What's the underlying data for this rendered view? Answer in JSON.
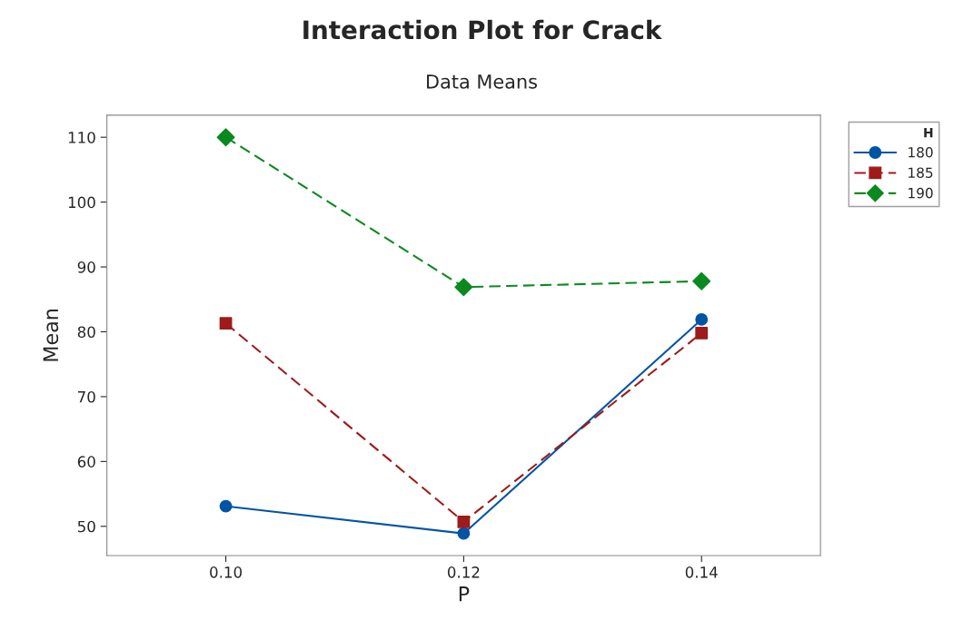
{
  "chart_data": {
    "type": "line",
    "title": "Interaction Plot for Crack",
    "subtitle": "Data Means",
    "xlabel": "P",
    "ylabel": "Mean",
    "legend_title": "H",
    "x": [
      0.1,
      0.12,
      0.14
    ],
    "series": [
      {
        "name": "180",
        "color": "#0054a6",
        "values": [
          53.1,
          48.9,
          81.9
        ],
        "marker": "circle",
        "line_style": "solid"
      },
      {
        "name": "185",
        "color": "#9e1b1b",
        "values": [
          81.3,
          50.7,
          79.8
        ],
        "marker": "square",
        "line_style": "dashed"
      },
      {
        "name": "190",
        "color": "#0a8a1e",
        "values": [
          110,
          86.9,
          87.8
        ],
        "marker": "diamond",
        "line_style": "dashed"
      }
    ],
    "xlim": [
      0.09,
      0.15
    ],
    "xticks": [
      {
        "value": 0.1,
        "label": "0.10"
      },
      {
        "value": 0.12,
        "label": "0.12"
      },
      {
        "value": 0.14,
        "label": "0.14"
      }
    ],
    "ylim": [
      45.5,
      113.4
    ],
    "yticks": [
      50,
      60,
      70,
      80,
      90,
      100,
      110
    ],
    "grid": false,
    "legend": "top right"
  }
}
